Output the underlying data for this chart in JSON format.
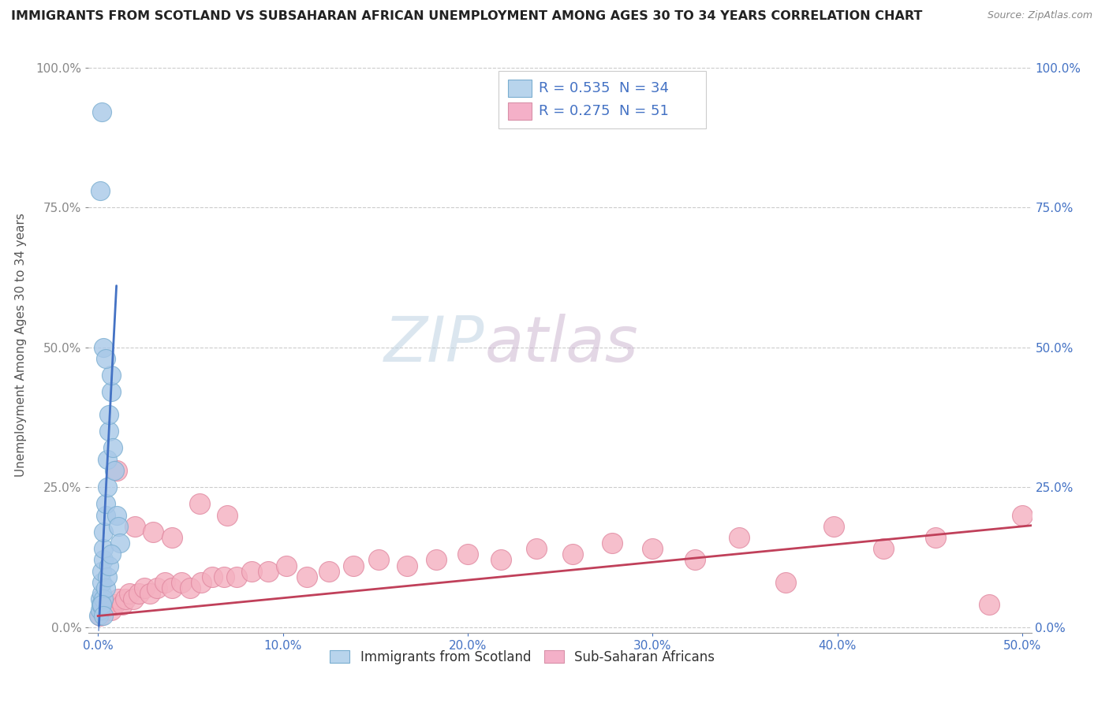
{
  "title": "IMMIGRANTS FROM SCOTLAND VS SUBSAHARAN AFRICAN UNEMPLOYMENT AMONG AGES 30 TO 34 YEARS CORRELATION CHART",
  "source": "Source: ZipAtlas.com",
  "xlabel_ticks_labels": [
    "0.0%",
    "10.0%",
    "20.0%",
    "30.0%",
    "40.0%",
    "50.0%"
  ],
  "xlabel_ticks_vals": [
    0.0,
    0.1,
    0.2,
    0.3,
    0.4,
    0.5
  ],
  "ylabel_ticks_labels": [
    "0.0%",
    "25.0%",
    "50.0%",
    "75.0%",
    "100.0%"
  ],
  "ylabel_ticks_vals": [
    0.0,
    0.25,
    0.5,
    0.75,
    1.0
  ],
  "ylabel_label": "Unemployment Among Ages 30 to 34 years",
  "xlim": [
    -0.005,
    0.505
  ],
  "ylim": [
    -0.01,
    1.02
  ],
  "scotland_color": "#a8c8e8",
  "scotland_edge": "#7aaed0",
  "subsaharan_color": "#f4b0c0",
  "subsaharan_edge": "#e088a0",
  "trendline_scotland_color": "#4472c4",
  "trendline_subsaharan_color": "#c0405a",
  "watermark_zip": "ZIP",
  "watermark_atlas": "atlas",
  "watermark_color_zip": "#c0d4e8",
  "watermark_color_atlas": "#c0a8c0",
  "background_color": "#ffffff",
  "grid_color": "#cccccc",
  "legend_R_color": "#4472c4",
  "legend_N_color": "#c0304a",
  "tick_color_x": "#4472c4",
  "tick_color_y_left": "#888888",
  "tick_color_y_right": "#4472c4"
}
